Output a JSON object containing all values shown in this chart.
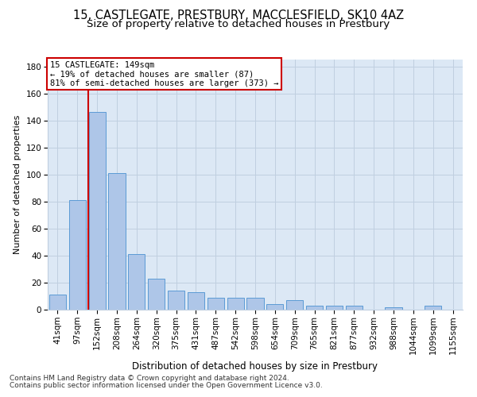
{
  "title1": "15, CASTLEGATE, PRESTBURY, MACCLESFIELD, SK10 4AZ",
  "title2": "Size of property relative to detached houses in Prestbury",
  "xlabel": "Distribution of detached houses by size in Prestbury",
  "ylabel": "Number of detached properties",
  "categories": [
    "41sqm",
    "97sqm",
    "152sqm",
    "208sqm",
    "264sqm",
    "320sqm",
    "375sqm",
    "431sqm",
    "487sqm",
    "542sqm",
    "598sqm",
    "654sqm",
    "709sqm",
    "765sqm",
    "821sqm",
    "877sqm",
    "932sqm",
    "988sqm",
    "1044sqm",
    "1099sqm",
    "1155sqm"
  ],
  "values": [
    11,
    81,
    146,
    101,
    41,
    23,
    14,
    13,
    9,
    9,
    9,
    4,
    7,
    3,
    3,
    3,
    0,
    2,
    0,
    3,
    0
  ],
  "bar_color": "#aec6e8",
  "bar_edge_color": "#5b9bd5",
  "bar_edge_width": 0.7,
  "grid_color": "#c0cfe0",
  "bg_color": "#dce8f5",
  "property_line_x": 1.55,
  "property_line_color": "#cc0000",
  "annotation_text": "15 CASTLEGATE: 149sqm\n← 19% of detached houses are smaller (87)\n81% of semi-detached houses are larger (373) →",
  "annotation_box_color": "#cc0000",
  "ylim": [
    0,
    185
  ],
  "yticks": [
    0,
    20,
    40,
    60,
    80,
    100,
    120,
    140,
    160,
    180
  ],
  "footer1": "Contains HM Land Registry data © Crown copyright and database right 2024.",
  "footer2": "Contains public sector information licensed under the Open Government Licence v3.0.",
  "title1_fontsize": 10.5,
  "title2_fontsize": 9.5,
  "xlabel_fontsize": 8.5,
  "ylabel_fontsize": 8,
  "tick_fontsize": 7.5,
  "annotation_fontsize": 7.5,
  "footer_fontsize": 6.5
}
